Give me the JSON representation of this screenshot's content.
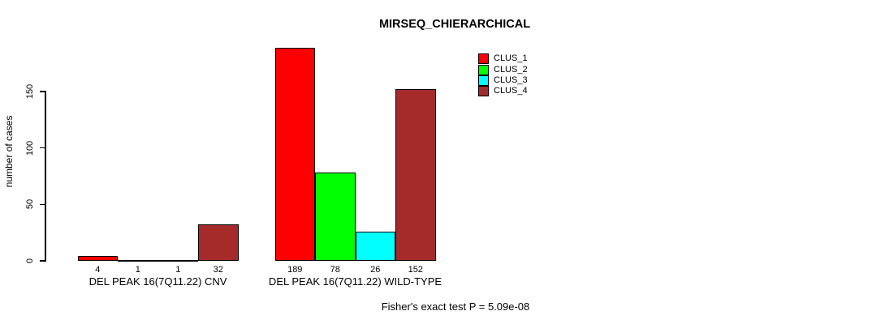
{
  "chart_data": {
    "type": "bar",
    "title": "MIRSEQ_CHIERARCHICAL",
    "ylabel": "number of cases",
    "xlabel": "",
    "ylim": [
      0,
      150
    ],
    "yticks": [
      0,
      50,
      100,
      150
    ],
    "categories": [
      "DEL PEAK 16(7Q11.22) CNV",
      "DEL PEAK 16(7Q11.22) WILD-TYPE"
    ],
    "series": [
      {
        "name": "CLUS_1",
        "color": "#FF0000",
        "values": [
          4,
          189
        ]
      },
      {
        "name": "CLUS_2",
        "color": "#00FF00",
        "values": [
          1,
          78
        ]
      },
      {
        "name": "CLUS_3",
        "color": "#00FFFF",
        "values": [
          1,
          26
        ]
      },
      {
        "name": "CLUS_4",
        "color": "#A52A2A",
        "values": [
          32,
          152
        ]
      }
    ],
    "bar_value_labels": [
      [
        4,
        1,
        1,
        32
      ],
      [
        189,
        78,
        26,
        152
      ]
    ],
    "annotation": "Fisher's exact test P = 5.09e-08",
    "legend_position": "top-right",
    "legend_labels": [
      "CLUS_1",
      "CLUS_2",
      "CLUS_3",
      "CLUS_4"
    ],
    "grid": false,
    "background_color": "#FFFFFF",
    "axis_color": "#000000"
  }
}
